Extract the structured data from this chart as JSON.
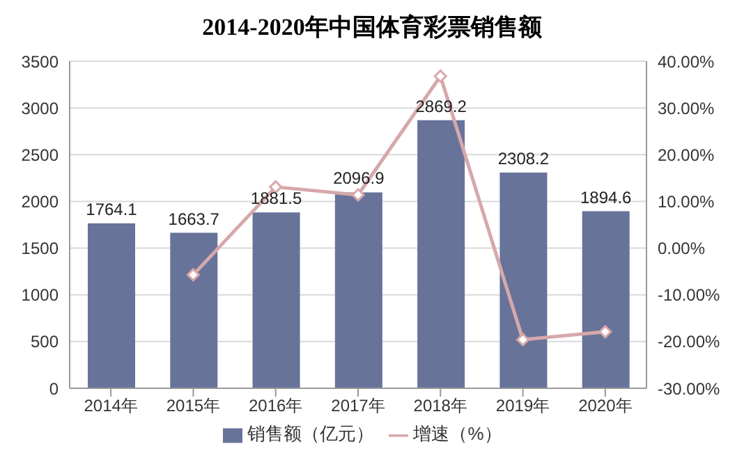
{
  "chart_data": {
    "type": "bar",
    "title": "2014-2020年中国体育彩票销售额",
    "categories": [
      "2014年",
      "2015年",
      "2016年",
      "2017年",
      "2018年",
      "2019年",
      "2020年"
    ],
    "series": [
      {
        "name": "销售额（亿元）",
        "color": "#68739a",
        "values": [
          1764.1,
          1663.7,
          1881.5,
          2096.9,
          2869.2,
          2308.2,
          1894.6
        ],
        "value_labels": [
          "1764.1",
          "1663.7",
          "1881.5",
          "2096.9",
          "2869.2",
          "2308.2",
          "1894.6"
        ]
      },
      {
        "name": "增速（%）",
        "type": "line",
        "axis": "y2",
        "color": "#d6a8ab",
        "marker": "diamond",
        "values": [
          null,
          -5.7,
          13.1,
          11.4,
          36.8,
          -19.6,
          -17.9
        ]
      }
    ],
    "ylim": [
      0,
      3500
    ],
    "yticks": [
      0,
      500,
      1000,
      1500,
      2000,
      2500,
      3000,
      3500
    ],
    "y2lim": [
      -30,
      40
    ],
    "y2ticks": [
      {
        "value": -30,
        "label": "-30.00%"
      },
      {
        "value": -20,
        "label": "-20.00%"
      },
      {
        "value": -10,
        "label": "-10.00%"
      },
      {
        "value": 0,
        "label": "0.00%"
      },
      {
        "value": 10,
        "label": "10.00%"
      },
      {
        "value": 20,
        "label": "20.00%"
      },
      {
        "value": 30,
        "label": "30.00%"
      },
      {
        "value": 40,
        "label": "40.00%"
      }
    ],
    "grid": "y",
    "legend": "bottom"
  }
}
